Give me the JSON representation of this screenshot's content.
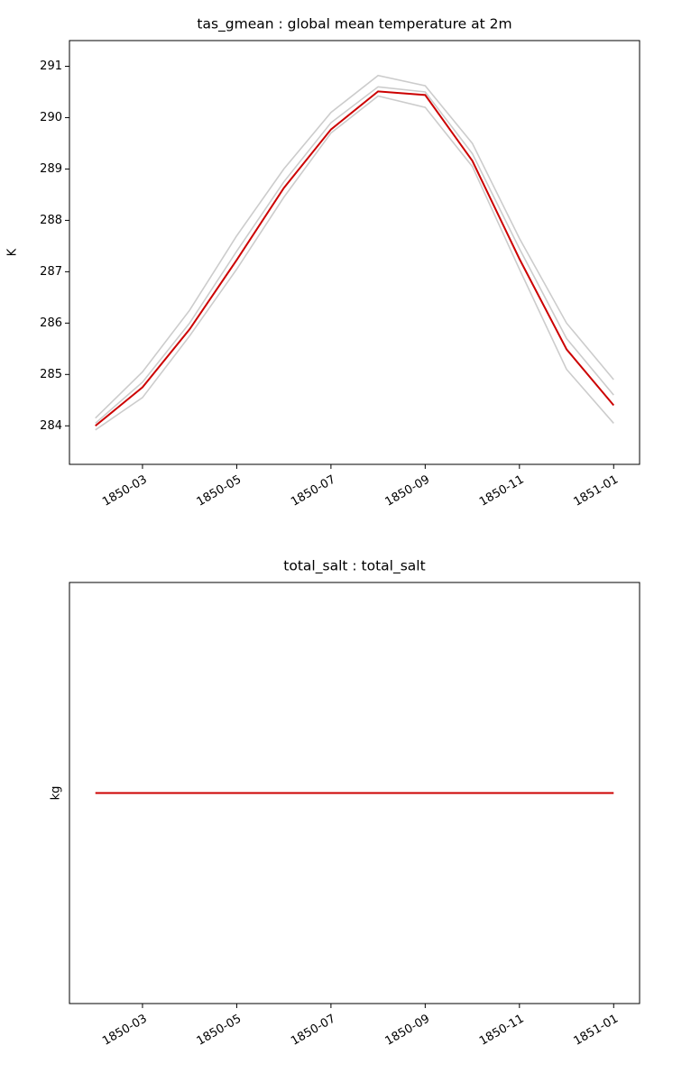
{
  "chart_data": [
    {
      "type": "line",
      "title": "tas_gmean : global mean temperature at 2m",
      "y_label": "K",
      "x": [
        "1850-02",
        "1850-03",
        "1850-04",
        "1850-05",
        "1850-06",
        "1850-07",
        "1850-08",
        "1850-09",
        "1850-10",
        "1850-11",
        "1850-12",
        "1851-01"
      ],
      "xticks": [
        "1850-03",
        "1850-05",
        "1850-07",
        "1850-09",
        "1850-11",
        "1851-01"
      ],
      "ylim": [
        283.25,
        291.5
      ],
      "yticks": [
        284,
        285,
        286,
        287,
        288,
        289,
        290,
        291
      ],
      "series": [
        {
          "color": "#cccccc",
          "values": [
            284.15,
            285.05,
            286.25,
            287.7,
            289.0,
            290.1,
            290.82,
            290.62,
            289.5,
            287.65,
            286.0,
            284.9
          ]
        },
        {
          "color": "#cccccc",
          "values": [
            283.92,
            284.55,
            285.75,
            287.05,
            288.45,
            289.7,
            290.42,
            290.2,
            289.05,
            287.05,
            285.1,
            284.05
          ]
        },
        {
          "color": "#cccccc",
          "values": [
            284.05,
            284.85,
            286.0,
            287.4,
            288.75,
            289.9,
            290.6,
            290.5,
            289.3,
            287.45,
            285.7,
            284.6
          ]
        },
        {
          "color": "#cc0000",
          "values": [
            284.0,
            284.75,
            285.88,
            287.23,
            288.63,
            289.77,
            290.51,
            290.44,
            289.16,
            287.25,
            285.49,
            284.4
          ]
        }
      ]
    },
    {
      "type": "line",
      "title": "total_salt : total_salt",
      "y_label": "kg",
      "x": [
        "1850-02",
        "1850-03",
        "1850-04",
        "1850-05",
        "1850-06",
        "1850-07",
        "1850-08",
        "1850-09",
        "1850-10",
        "1850-11",
        "1850-12",
        "1851-01"
      ],
      "xticks": [
        "1850-03",
        "1850-05",
        "1850-07",
        "1850-09",
        "1850-11",
        "1851-01"
      ],
      "series": [
        {
          "color": "#cc0000",
          "values": [
            0,
            0,
            0,
            0,
            0,
            0,
            0,
            0,
            0,
            0,
            0,
            0
          ]
        }
      ]
    }
  ]
}
